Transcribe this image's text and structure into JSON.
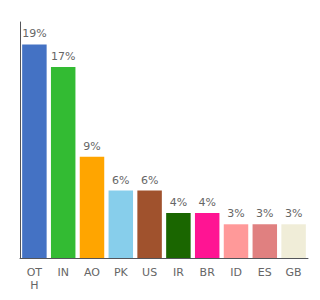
{
  "chart_data": {
    "type": "bar",
    "categories": [
      "OT\nH",
      "IN",
      "AO",
      "PK",
      "US",
      "IR",
      "BR",
      "ID",
      "ES",
      "GB"
    ],
    "values": [
      19,
      17,
      9,
      6,
      6,
      4,
      4,
      3,
      3,
      3
    ],
    "value_labels": [
      "19%",
      "17%",
      "9%",
      "6%",
      "6%",
      "4%",
      "4%",
      "3%",
      "3%",
      "3%"
    ],
    "colors": [
      "#4472c4",
      "#33bb33",
      "#ffa500",
      "#87ceeb",
      "#a0522d",
      "#1a6600",
      "#ff1493",
      "#ff9999",
      "#e08080",
      "#f0edd8"
    ],
    "ylim": [
      0,
      21
    ],
    "grid": false,
    "data_labels": true,
    "tick_labels": "x"
  }
}
